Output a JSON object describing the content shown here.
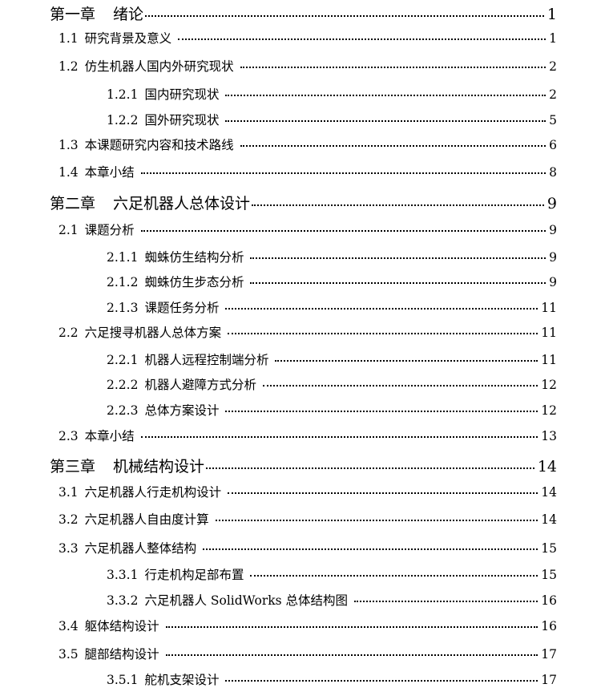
{
  "toc": [
    {
      "level": 1,
      "num": "第一章",
      "title": "绪论",
      "page": "1"
    },
    {
      "level": 2,
      "num": "1.1",
      "title": "研究背景及意义",
      "page": "1"
    },
    {
      "level": 2,
      "num": "1.2",
      "title": "仿生机器人国内外研究现状",
      "page": "2"
    },
    {
      "level": 3,
      "num": "1.2.1",
      "title": "国内研究现状",
      "page": "2"
    },
    {
      "level": 3,
      "num": "1.2.2",
      "title": "国外研究现状",
      "page": "5"
    },
    {
      "level": 2,
      "num": "1.3",
      "title": "本课题研究内容和技术路线",
      "page": "6"
    },
    {
      "level": 2,
      "num": "1.4",
      "title": "本章小结",
      "page": "8"
    },
    {
      "level": 1,
      "num": "第二章",
      "title": "六足机器人总体设计",
      "page": "9"
    },
    {
      "level": 2,
      "num": "2.1",
      "title": "课题分析",
      "page": "9"
    },
    {
      "level": 3,
      "num": "2.1.1",
      "title": "蜘蛛仿生结构分析",
      "page": "9"
    },
    {
      "level": 3,
      "num": "2.1.2",
      "title": "蜘蛛仿生步态分析",
      "page": "9"
    },
    {
      "level": 3,
      "num": "2.1.3",
      "title": "课题任务分析",
      "page": "11"
    },
    {
      "level": 2,
      "num": "2.2",
      "title": "六足搜寻机器人总体方案",
      "page": "11"
    },
    {
      "level": 3,
      "num": "2.2.1",
      "title": "机器人远程控制端分析",
      "page": "11"
    },
    {
      "level": 3,
      "num": "2.2.2",
      "title": "机器人避障方式分析",
      "page": "12"
    },
    {
      "level": 3,
      "num": "2.2.3",
      "title": "总体方案设计",
      "page": "12"
    },
    {
      "level": 2,
      "num": "2.3",
      "title": "本章小结",
      "page": "13"
    },
    {
      "level": 1,
      "num": "第三章",
      "title": "机械结构设计",
      "page": "14"
    },
    {
      "level": 2,
      "num": "3.1",
      "title": "六足机器人行走机构设计",
      "page": "14"
    },
    {
      "level": 2,
      "num": "3.2",
      "title": "六足机器人自由度计算",
      "page": "14"
    },
    {
      "level": 2,
      "num": "3.3",
      "title": "六足机器人整体结构",
      "page": "15"
    },
    {
      "level": 3,
      "num": "3.3.1",
      "title": "行走机构足部布置",
      "page": "15"
    },
    {
      "level": 3,
      "num": "3.3.2",
      "title": "六足机器人 SolidWorks 总体结构图",
      "page": "16"
    },
    {
      "level": 2,
      "num": "3.4",
      "title": "躯体结构设计",
      "page": "16"
    },
    {
      "level": 2,
      "num": "3.5",
      "title": "腿部结构设计",
      "page": "17"
    },
    {
      "level": 3,
      "num": "3.5.1",
      "title": "舵机支架设计",
      "page": "17"
    }
  ]
}
